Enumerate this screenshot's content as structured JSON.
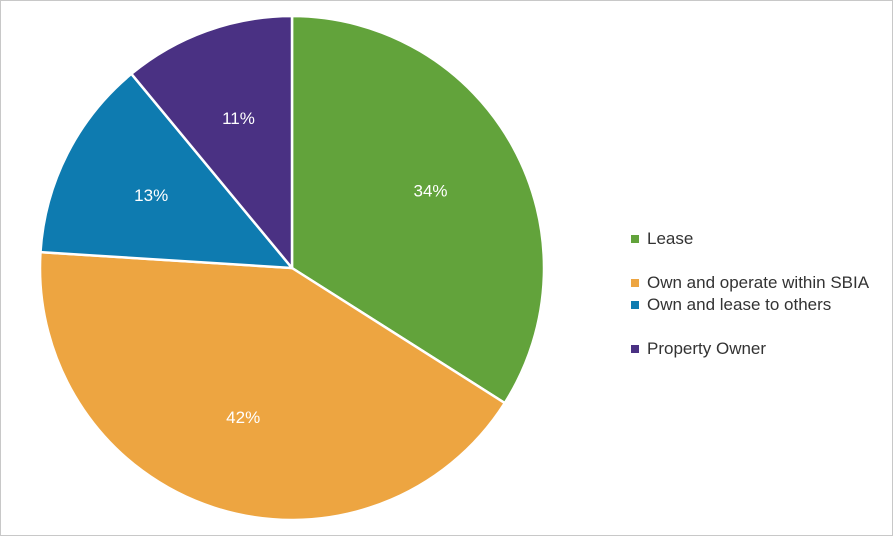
{
  "chart_data": {
    "type": "pie",
    "title": "",
    "slices": [
      {
        "name": "Lease",
        "value": 34,
        "label": "34%",
        "color": "#62a33b"
      },
      {
        "name": "Own and operate within SBIA",
        "value": 42,
        "label": "42%",
        "color": "#eda541"
      },
      {
        "name": "Own and lease to others",
        "value": 13,
        "label": "13%",
        "color": "#0e7bb0"
      },
      {
        "name": "Property Owner",
        "value": 11,
        "label": "11%",
        "color": "#4a3183"
      }
    ],
    "legend_position": "right",
    "label_color": "#ffffff",
    "start": "top",
    "direction": "clockwise"
  }
}
